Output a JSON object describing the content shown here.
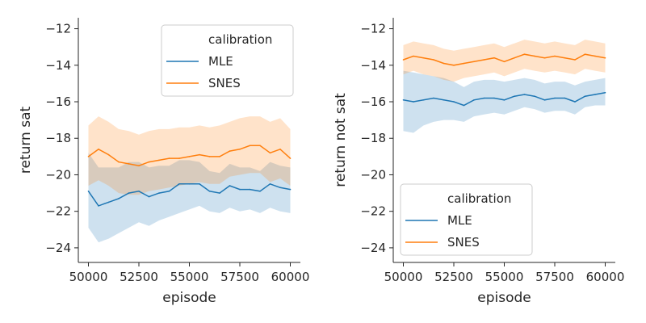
{
  "chart_data": [
    {
      "type": "line",
      "xlabel": "episode",
      "ylabel": "return sat",
      "xlim": [
        49500,
        60500
      ],
      "ylim": [
        -24.8,
        -11.4
      ],
      "xticks": [
        50000,
        52500,
        55000,
        57500,
        60000
      ],
      "xtick_labels": [
        "50000",
        "52500",
        "55000",
        "57500",
        "60000"
      ],
      "yticks": [
        -24,
        -22,
        -20,
        -18,
        -16,
        -14,
        -12
      ],
      "ytick_labels": [
        "−24",
        "−22",
        "−20",
        "−18",
        "−16",
        "−14",
        "−12"
      ],
      "legend": {
        "title": "calibration",
        "position": "top-right"
      },
      "x": [
        50000,
        50500,
        51000,
        51500,
        52000,
        52500,
        53000,
        53500,
        54000,
        54500,
        55000,
        55500,
        56000,
        56500,
        57000,
        57500,
        58000,
        58500,
        59000,
        59500,
        60000
      ],
      "series": [
        {
          "name": "MLE",
          "color": "#1f77b4",
          "values": [
            -20.9,
            -21.7,
            -21.5,
            -21.3,
            -21.0,
            -20.9,
            -21.2,
            -21.0,
            -20.9,
            -20.5,
            -20.5,
            -20.5,
            -20.9,
            -21.0,
            -20.6,
            -20.8,
            -20.8,
            -20.9,
            -20.5,
            -20.7,
            -20.8
          ],
          "lower": [
            -22.9,
            -23.7,
            -23.5,
            -23.2,
            -22.9,
            -22.6,
            -22.8,
            -22.5,
            -22.3,
            -22.1,
            -21.9,
            -21.7,
            -22.0,
            -22.1,
            -21.8,
            -22.0,
            -21.9,
            -22.1,
            -21.8,
            -22.0,
            -22.1
          ],
          "upper": [
            -18.8,
            -19.6,
            -19.6,
            -19.6,
            -19.3,
            -19.3,
            -19.6,
            -19.5,
            -19.5,
            -19.2,
            -19.2,
            -19.3,
            -19.8,
            -19.9,
            -19.4,
            -19.6,
            -19.6,
            -19.8,
            -19.3,
            -19.5,
            -19.6
          ]
        },
        {
          "name": "SNES",
          "color": "#ff7f0e",
          "values": [
            -19.0,
            -18.6,
            -18.9,
            -19.3,
            -19.4,
            -19.5,
            -19.3,
            -19.2,
            -19.1,
            -19.1,
            -19.0,
            -18.9,
            -19.0,
            -19.0,
            -18.7,
            -18.6,
            -18.4,
            -18.4,
            -18.8,
            -18.6,
            -19.1
          ],
          "lower": [
            -20.6,
            -20.3,
            -20.6,
            -21.0,
            -21.1,
            -21.1,
            -20.9,
            -20.8,
            -20.7,
            -20.6,
            -20.5,
            -20.4,
            -20.5,
            -20.5,
            -20.1,
            -20.0,
            -19.9,
            -19.9,
            -20.4,
            -20.2,
            -20.6
          ],
          "upper": [
            -17.3,
            -16.8,
            -17.1,
            -17.5,
            -17.6,
            -17.8,
            -17.6,
            -17.5,
            -17.5,
            -17.4,
            -17.4,
            -17.3,
            -17.4,
            -17.3,
            -17.1,
            -16.9,
            -16.8,
            -16.8,
            -17.1,
            -16.9,
            -17.5
          ]
        }
      ]
    },
    {
      "type": "line",
      "xlabel": "episode",
      "ylabel": "return not sat",
      "xlim": [
        49500,
        60500
      ],
      "ylim": [
        -24.8,
        -11.4
      ],
      "xticks": [
        50000,
        52500,
        55000,
        57500,
        60000
      ],
      "xtick_labels": [
        "50000",
        "52500",
        "55000",
        "57500",
        "60000"
      ],
      "yticks": [
        -24,
        -22,
        -20,
        -18,
        -16,
        -14,
        -12
      ],
      "ytick_labels": [
        "−24",
        "−22",
        "−20",
        "−18",
        "−16",
        "−14",
        "−12"
      ],
      "legend": {
        "title": "calibration",
        "position": "bottom-left"
      },
      "x": [
        50000,
        50500,
        51000,
        51500,
        52000,
        52500,
        53000,
        53500,
        54000,
        54500,
        55000,
        55500,
        56000,
        56500,
        57000,
        57500,
        58000,
        58500,
        59000,
        59500,
        60000
      ],
      "series": [
        {
          "name": "MLE",
          "color": "#1f77b4",
          "values": [
            -15.9,
            -16.0,
            -15.9,
            -15.8,
            -15.9,
            -16.0,
            -16.2,
            -15.9,
            -15.8,
            -15.8,
            -15.9,
            -15.7,
            -15.6,
            -15.7,
            -15.9,
            -15.8,
            -15.8,
            -16.0,
            -15.7,
            -15.6,
            -15.5
          ],
          "lower": [
            -17.6,
            -17.7,
            -17.3,
            -17.1,
            -17.0,
            -17.0,
            -17.1,
            -16.8,
            -16.7,
            -16.6,
            -16.7,
            -16.5,
            -16.3,
            -16.4,
            -16.6,
            -16.5,
            -16.5,
            -16.7,
            -16.3,
            -16.2,
            -16.2
          ],
          "upper": [
            -14.3,
            -14.4,
            -14.5,
            -14.6,
            -14.7,
            -14.9,
            -15.2,
            -14.9,
            -14.8,
            -14.8,
            -14.9,
            -14.8,
            -14.7,
            -14.8,
            -15.0,
            -14.9,
            -14.9,
            -15.1,
            -14.9,
            -14.8,
            -14.7
          ]
        },
        {
          "name": "SNES",
          "color": "#ff7f0e",
          "values": [
            -13.7,
            -13.5,
            -13.6,
            -13.7,
            -13.9,
            -14.0,
            -13.9,
            -13.8,
            -13.7,
            -13.6,
            -13.8,
            -13.6,
            -13.4,
            -13.5,
            -13.6,
            -13.5,
            -13.6,
            -13.7,
            -13.4,
            -13.5,
            -13.6
          ],
          "lower": [
            -14.5,
            -14.3,
            -14.5,
            -14.6,
            -14.8,
            -14.9,
            -14.7,
            -14.6,
            -14.5,
            -14.4,
            -14.6,
            -14.4,
            -14.2,
            -14.3,
            -14.4,
            -14.3,
            -14.4,
            -14.5,
            -14.2,
            -14.3,
            -14.4
          ],
          "upper": [
            -12.9,
            -12.7,
            -12.8,
            -12.9,
            -13.1,
            -13.2,
            -13.1,
            -13.0,
            -12.9,
            -12.8,
            -13.0,
            -12.8,
            -12.6,
            -12.7,
            -12.8,
            -12.7,
            -12.8,
            -12.9,
            -12.6,
            -12.7,
            -12.8
          ]
        }
      ]
    }
  ]
}
